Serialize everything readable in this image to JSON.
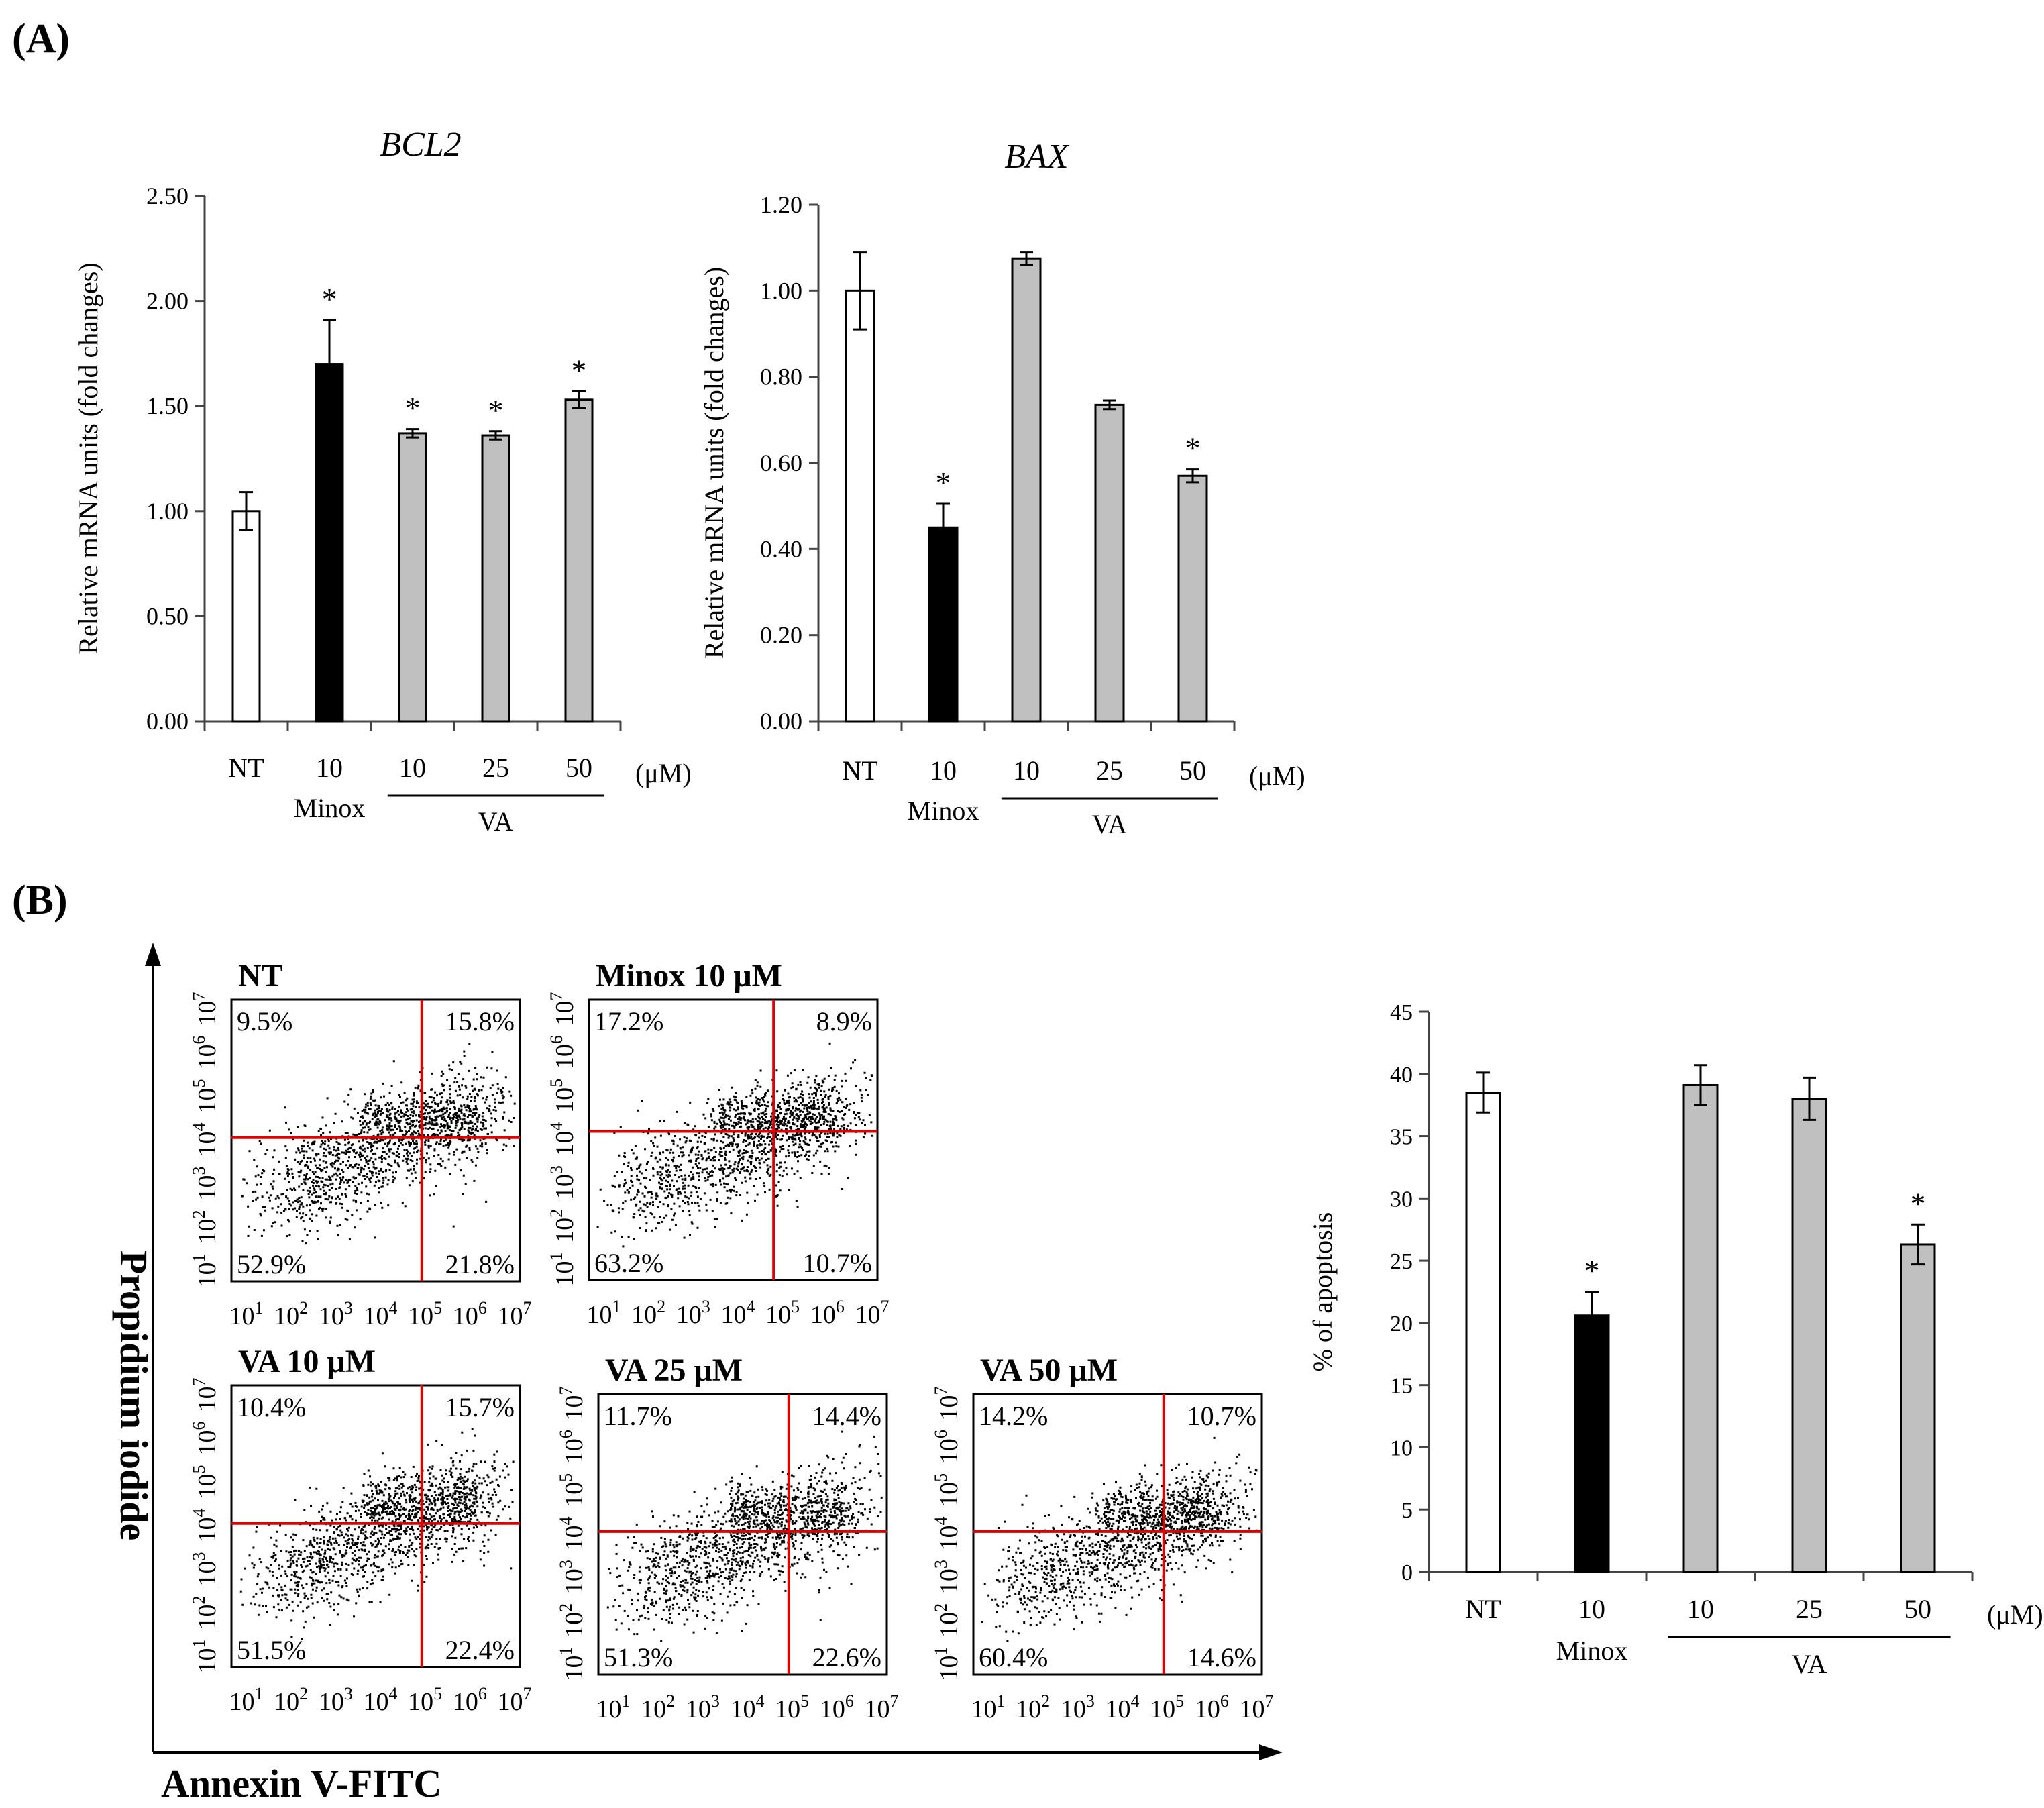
{
  "panel_labels": {
    "a": "(A)",
    "b": "(B)"
  },
  "colors": {
    "nt": "#ffffff",
    "minox": "#000000",
    "va": "#c0c0c0",
    "gate": "#e00000"
  },
  "chart_data": [
    {
      "id": "bcl2",
      "type": "bar",
      "title": "BCL2",
      "ylabel": "Relative mRNA units (fold changes)",
      "ylim": [
        0,
        2.5
      ],
      "yticks": [
        "0.00",
        "0.50",
        "1.00",
        "1.50",
        "2.00",
        "2.50"
      ],
      "categories": [
        "NT",
        "10",
        "10",
        "25",
        "50"
      ],
      "values": [
        1.0,
        1.7,
        1.37,
        1.36,
        1.53
      ],
      "errors": [
        0.09,
        0.21,
        0.02,
        0.02,
        0.04
      ],
      "significant": [
        false,
        true,
        true,
        true,
        true
      ],
      "sig_marker": "*",
      "group_labels": {
        "minox": "Minox",
        "va": "VA"
      },
      "unit": "(μM)"
    },
    {
      "id": "bax",
      "type": "bar",
      "title": "BAX",
      "ylabel": "Relative mRNA units (fold changes)",
      "ylim": [
        0,
        1.2
      ],
      "yticks": [
        "0.00",
        "0.20",
        "0.40",
        "0.60",
        "0.80",
        "1.00",
        "1.20"
      ],
      "categories": [
        "NT",
        "10",
        "10",
        "25",
        "50"
      ],
      "values": [
        1.0,
        0.45,
        1.075,
        0.735,
        0.57
      ],
      "errors": [
        0.09,
        0.055,
        0.015,
        0.01,
        0.015
      ],
      "significant": [
        false,
        true,
        false,
        false,
        true
      ],
      "sig_marker": "*",
      "group_labels": {
        "minox": "Minox",
        "va": "VA"
      },
      "unit": "(μM)"
    },
    {
      "id": "apoptosis",
      "type": "bar",
      "title": "",
      "ylabel": "% of apoptosis",
      "ylim": [
        0,
        45
      ],
      "yticks": [
        "0",
        "5",
        "10",
        "15",
        "20",
        "25",
        "30",
        "35",
        "40",
        "45"
      ],
      "categories": [
        "NT",
        "10",
        "10",
        "25",
        "50"
      ],
      "values": [
        38.5,
        20.6,
        39.1,
        38.0,
        26.3
      ],
      "errors": [
        1.6,
        1.9,
        1.6,
        1.7,
        1.6
      ],
      "significant": [
        false,
        true,
        false,
        false,
        true
      ],
      "sig_marker": "*",
      "group_labels": {
        "minox": "Minox",
        "va": "VA"
      },
      "unit": "(μM)"
    },
    {
      "id": "flow",
      "type": "scatter",
      "xlabel": "Annexin V-FITC",
      "ylabel": "Propidium iodide",
      "tick_labels": [
        "10",
        "10",
        "10",
        "10",
        "10",
        "10",
        "10"
      ],
      "tick_exponents": [
        "1",
        "2",
        "3",
        "4",
        "5",
        "6",
        "7"
      ],
      "plots": [
        {
          "title": "NT",
          "quadrants": {
            "ul": "9.5%",
            "ur": "15.8%",
            "ll": "52.9%",
            "lr": "21.8%"
          }
        },
        {
          "title": "Minox 10 μM",
          "quadrants": {
            "ul": "17.2%",
            "ur": "8.9%",
            "ll": "63.2%",
            "lr": "10.7%"
          }
        },
        {
          "title": "VA 10 μM",
          "quadrants": {
            "ul": "10.4%",
            "ur": "15.7%",
            "ll": "51.5%",
            "lr": "22.4%"
          }
        },
        {
          "title": "VA 25 μM",
          "quadrants": {
            "ul": "11.7%",
            "ur": "14.4%",
            "ll": "51.3%",
            "lr": "22.6%"
          }
        },
        {
          "title": "VA 50 μM",
          "quadrants": {
            "ul": "14.2%",
            "ur": "10.7%",
            "ll": "60.4%",
            "lr": "14.6%"
          }
        }
      ]
    }
  ]
}
